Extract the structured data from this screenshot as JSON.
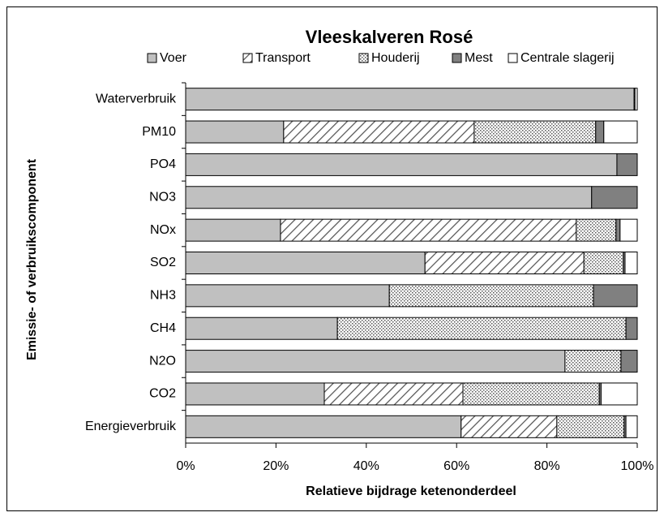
{
  "chart_data": {
    "type": "stacked_barh",
    "title": "Vleeskalveren Rosé",
    "xlabel": "Relatieve bijdrage ketenonderdeel",
    "ylabel": "Emissie- of verbruikscomponent",
    "categories": [
      "Waterverbruik",
      "PM10",
      "PO4",
      "NO3",
      "NOx",
      "SO2",
      "NH3",
      "CH4",
      "N2O",
      "CO2",
      "Energieverbruik"
    ],
    "series": [
      {
        "name": "Voer",
        "color": "#c0c0c0",
        "pattern": "solid",
        "values": [
          99.3,
          21.7,
          95.5,
          89.9,
          21.0,
          53.0,
          45.1,
          33.6,
          84.0,
          30.7,
          61.0
        ]
      },
      {
        "name": "Transport",
        "color": "#ffffff",
        "pattern": "hatch",
        "values": [
          0,
          42.2,
          0,
          0,
          65.5,
          35.2,
          0,
          0,
          0,
          30.7,
          21.2
        ]
      },
      {
        "name": "Houderij",
        "color": "#ffffff",
        "pattern": "dots",
        "values": [
          0.2,
          26.9,
          0,
          0,
          8.8,
          8.7,
          45.2,
          63.9,
          12.4,
          30.2,
          14.9
        ]
      },
      {
        "name": "Mest",
        "color": "#808080",
        "pattern": "solid",
        "values": [
          0,
          1.8,
          4.5,
          10.1,
          0.9,
          0.4,
          9.7,
          2.5,
          3.6,
          0.4,
          0.4
        ]
      },
      {
        "name": "Centrale slagerij",
        "color": "#ffffff",
        "pattern": "solid",
        "values": [
          0.5,
          7.4,
          0,
          0,
          3.8,
          2.7,
          0,
          0,
          0,
          8.0,
          2.5
        ]
      }
    ],
    "xlim": [
      0,
      100
    ],
    "xticks": [
      {
        "value": 0,
        "label": "0%"
      },
      {
        "value": 20,
        "label": "20%"
      },
      {
        "value": 40,
        "label": "40%"
      },
      {
        "value": 60,
        "label": "60%"
      },
      {
        "value": 80,
        "label": "80%"
      },
      {
        "value": 100,
        "label": "100%"
      }
    ],
    "legend": "top"
  }
}
